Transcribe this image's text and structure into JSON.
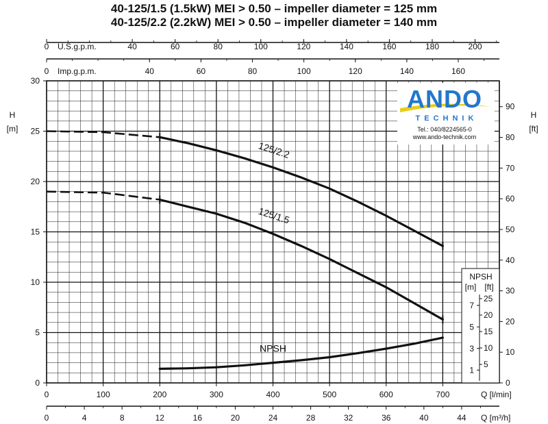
{
  "titles": {
    "line1": "40-125/1.5 (1.5kW) MEI > 0.50 – impeller diameter = 125 mm",
    "line2": "40-125/2.2 (2.2kW) MEI > 0.50 – impeller diameter = 140 mm"
  },
  "logo": {
    "brand": "ANDO",
    "sub": "TECHNIK",
    "phone": "Tel.: 040/8224565-0",
    "web": "www.ando-technik.com",
    "colors": {
      "brand": "#2277cc",
      "swoosh": "#e8cc1a",
      "sub": "#2277cc"
    }
  },
  "chart_data": {
    "type": "line",
    "x_primary": {
      "label": "Q [l/min]",
      "range": [
        0,
        800
      ],
      "ticks": [
        0,
        100,
        200,
        300,
        400,
        500,
        600,
        700
      ]
    },
    "x_m3h": {
      "label": "Q [m³/h]",
      "ticks": [
        0,
        4,
        8,
        12,
        16,
        20,
        24,
        28,
        32,
        36,
        40,
        44
      ]
    },
    "x_usgpm": {
      "label": "U.S.g.p.m.",
      "ticks": [
        0,
        40,
        60,
        80,
        100,
        120,
        140,
        160,
        180,
        200
      ]
    },
    "x_impgpm": {
      "label": "Imp.g.p.m.",
      "ticks": [
        0,
        40,
        60,
        80,
        100,
        120,
        140,
        160
      ]
    },
    "y_left": {
      "label": "H",
      "unit": "[m]",
      "range": [
        0,
        30
      ],
      "ticks": [
        0,
        5,
        10,
        15,
        20,
        25,
        30
      ]
    },
    "y_right": {
      "label": "H",
      "unit": "[ft]",
      "ticks": [
        0,
        10,
        20,
        30,
        40,
        50,
        60,
        70,
        80,
        90
      ]
    },
    "grid": true,
    "series": [
      {
        "name": "125/2.2",
        "dashed": {
          "x": [
            0,
            100,
            200
          ],
          "y": [
            25.0,
            24.9,
            24.4
          ]
        },
        "solid": {
          "x": [
            200,
            250,
            300,
            350,
            400,
            450,
            500,
            550,
            600,
            650,
            700
          ],
          "y": [
            24.4,
            23.8,
            23.1,
            22.3,
            21.4,
            20.4,
            19.3,
            18.0,
            16.6,
            15.1,
            13.6
          ]
        }
      },
      {
        "name": "125/1.5",
        "dashed": {
          "x": [
            0,
            100,
            200
          ],
          "y": [
            19.0,
            18.9,
            18.2
          ]
        },
        "solid": {
          "x": [
            200,
            250,
            300,
            350,
            400,
            450,
            500,
            550,
            600,
            650,
            700
          ],
          "y": [
            18.2,
            17.5,
            16.8,
            15.9,
            14.8,
            13.6,
            12.3,
            10.9,
            9.5,
            7.9,
            6.3
          ]
        }
      },
      {
        "name": "NPSH",
        "solid": {
          "x": [
            200,
            250,
            300,
            350,
            400,
            450,
            500,
            550,
            600,
            650,
            700
          ],
          "y": [
            1.4,
            1.45,
            1.55,
            1.75,
            2.0,
            2.25,
            2.55,
            2.95,
            3.4,
            3.9,
            4.5
          ]
        }
      }
    ],
    "npsh_box": {
      "title": "NPSH",
      "unit_m": "[m]",
      "unit_ft": "[ft]",
      "m_ticks": [
        1,
        3,
        5,
        7
      ],
      "ft_ticks": [
        5,
        10,
        15,
        20,
        25
      ]
    }
  }
}
